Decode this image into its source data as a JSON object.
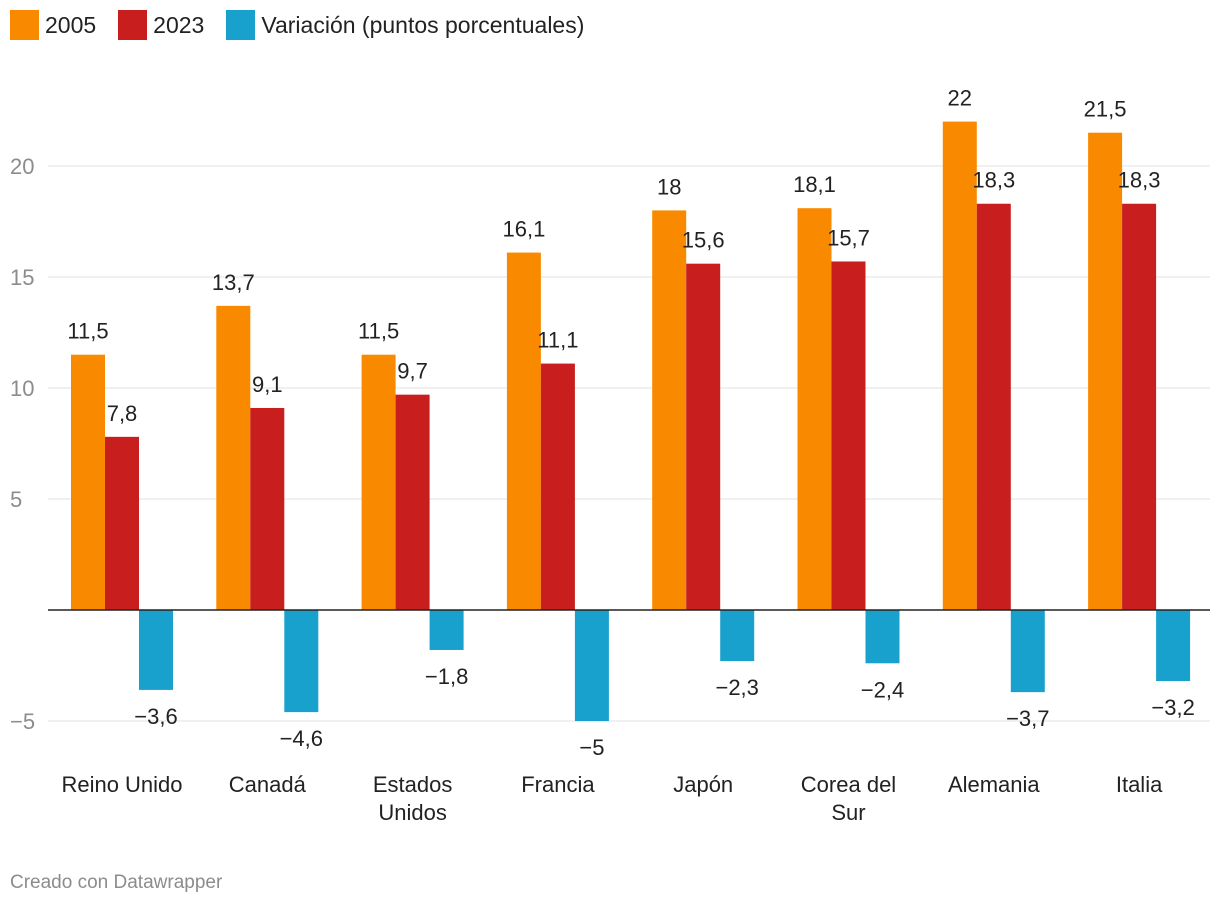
{
  "chart_data": {
    "type": "bar",
    "categories": [
      [
        "Reino Unido"
      ],
      [
        "Canadá"
      ],
      [
        "Estados",
        "Unidos"
      ],
      [
        "Francia"
      ],
      [
        "Japón"
      ],
      [
        "Corea del",
        "Sur"
      ],
      [
        "Alemania"
      ],
      [
        "Italia"
      ]
    ],
    "series": [
      {
        "name": "2005",
        "color": "#f98a00",
        "values": [
          11.5,
          13.7,
          11.5,
          16.1,
          18,
          18.1,
          22,
          21.5
        ],
        "labels": [
          "11,5",
          "13,7",
          "11,5",
          "16,1",
          "18",
          "18,1",
          "22",
          "21,5"
        ]
      },
      {
        "name": "2023",
        "color": "#c81e1e",
        "values": [
          7.8,
          9.1,
          9.7,
          11.1,
          15.6,
          15.7,
          18.3,
          18.3
        ],
        "labels": [
          "7,8",
          "9,1",
          "9,7",
          "11,1",
          "15,6",
          "15,7",
          "18,3",
          "18,3"
        ]
      },
      {
        "name": "Variación (puntos porcentuales)",
        "color": "#18a1cd",
        "values": [
          -3.6,
          -4.6,
          -1.8,
          -5,
          -2.3,
          -2.4,
          -3.7,
          -3.2
        ],
        "labels": [
          "−3,6",
          "−4,6",
          "−1,8",
          "−5",
          "−2,3",
          "−2,4",
          "−3,7",
          "−3,2"
        ]
      }
    ],
    "yticks": [
      20,
      15,
      10,
      5,
      -5
    ],
    "ytick_labels": [
      "20",
      "15",
      "10",
      "5",
      "−5"
    ],
    "ylim": [
      -5,
      22
    ],
    "grid": true,
    "legend": "top-left",
    "title": "",
    "xlabel": "",
    "ylabel": ""
  },
  "credit": "Creado con Datawrapper"
}
